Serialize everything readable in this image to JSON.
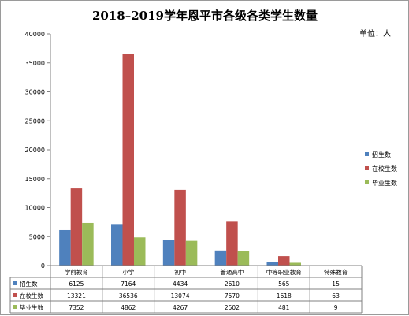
{
  "chart_data": {
    "type": "bar",
    "title": "2018–2019学年恩平市各级各类学生数量",
    "unit_label": "单位：人",
    "categories": [
      "学前教育",
      "小学",
      "初中",
      "普通高中",
      "中等职业教育",
      "特殊教育"
    ],
    "series": [
      {
        "name": "招生数",
        "color": "#4f81bd",
        "values": [
          6125,
          7164,
          4434,
          2610,
          565,
          15
        ]
      },
      {
        "name": "在校生数",
        "color": "#c0504d",
        "values": [
          13321,
          36536,
          13074,
          7570,
          1618,
          63
        ]
      },
      {
        "name": "毕业生数",
        "color": "#9bbb59",
        "values": [
          7352,
          4862,
          4267,
          2502,
          481,
          9
        ]
      }
    ],
    "ylim": [
      0,
      40000
    ],
    "yticks": [
      0,
      5000,
      10000,
      15000,
      20000,
      25000,
      30000,
      35000,
      40000
    ],
    "grid": false,
    "legend_position": "right",
    "data_table": true
  }
}
